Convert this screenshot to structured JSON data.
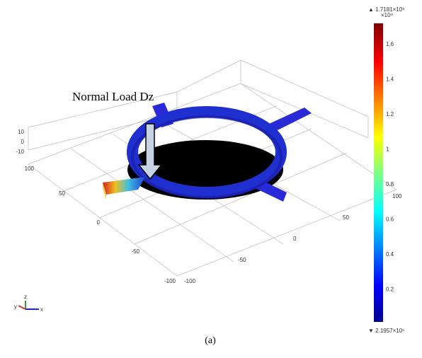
{
  "annotation": "Normal Load Dz",
  "caption": "(a)",
  "z_axis": [
    "10",
    "0",
    "-10"
  ],
  "y_axis": [
    "100",
    "50",
    "0",
    "-50",
    "-100"
  ],
  "x_axis": [
    "-100",
    "-50",
    "0",
    "50",
    "100"
  ],
  "triad": [
    "z",
    "y",
    "x"
  ],
  "colorbar": {
    "max": "▲ 1.7181×10⁹",
    "scale": "×10⁹",
    "ticks": [
      "1.6",
      "1.4",
      "1.2",
      "1",
      "0.8",
      "0.6",
      "0.4",
      "0.2"
    ],
    "min": "▼ 2.1957×10⁶"
  }
}
